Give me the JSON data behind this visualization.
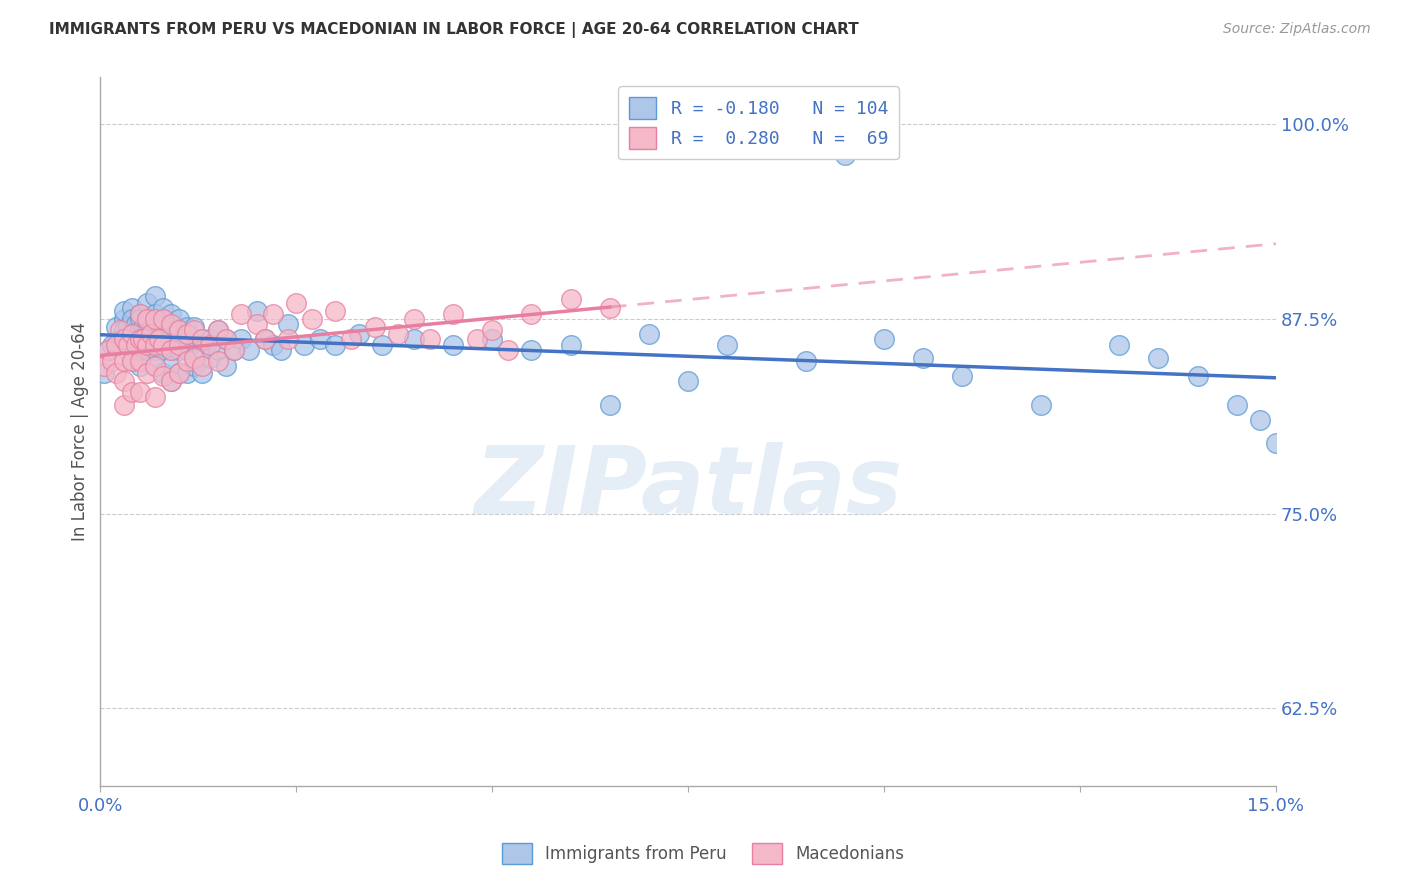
{
  "title": "IMMIGRANTS FROM PERU VS MACEDONIAN IN LABOR FORCE | AGE 20-64 CORRELATION CHART",
  "source": "Source: ZipAtlas.com",
  "ylabel": "In Labor Force | Age 20-64",
  "xlim": [
    0.0,
    0.15
  ],
  "ylim": [
    0.575,
    1.03
  ],
  "ytick_labels_right": [
    "100.0%",
    "87.5%",
    "75.0%",
    "62.5%"
  ],
  "ytick_vals_right": [
    1.0,
    0.875,
    0.75,
    0.625
  ],
  "peru_color": "#aec6e8",
  "peru_edge_color": "#5b9bd5",
  "mac_color": "#f4b8c8",
  "mac_edge_color": "#e87fa0",
  "trend_peru_color": "#4472c4",
  "trend_mac_color": "#e87fa0",
  "R_peru": -0.18,
  "N_peru": 104,
  "R_mac": 0.28,
  "N_mac": 69,
  "watermark": "ZIPatlas",
  "background_color": "#ffffff",
  "grid_color": "#cccccc",
  "legend_label_peru": "R = -0.180   N = 104",
  "legend_label_mac": "R =  0.280   N =  69",
  "bottom_legend_peru": "Immigrants from Peru",
  "bottom_legend_mac": "Macedonians",
  "peru_x": [
    0.0005,
    0.001,
    0.0015,
    0.002,
    0.002,
    0.0025,
    0.003,
    0.003,
    0.003,
    0.003,
    0.0035,
    0.004,
    0.004,
    0.004,
    0.004,
    0.004,
    0.0045,
    0.005,
    0.005,
    0.005,
    0.005,
    0.005,
    0.005,
    0.0055,
    0.006,
    0.006,
    0.006,
    0.006,
    0.006,
    0.0065,
    0.007,
    0.007,
    0.007,
    0.007,
    0.007,
    0.007,
    0.0075,
    0.008,
    0.008,
    0.008,
    0.008,
    0.008,
    0.008,
    0.009,
    0.009,
    0.009,
    0.009,
    0.009,
    0.009,
    0.01,
    0.01,
    0.01,
    0.01,
    0.01,
    0.011,
    0.011,
    0.011,
    0.011,
    0.012,
    0.012,
    0.012,
    0.013,
    0.013,
    0.013,
    0.014,
    0.014,
    0.015,
    0.015,
    0.016,
    0.016,
    0.017,
    0.018,
    0.019,
    0.02,
    0.021,
    0.022,
    0.023,
    0.024,
    0.026,
    0.028,
    0.03,
    0.033,
    0.036,
    0.04,
    0.045,
    0.05,
    0.055,
    0.06,
    0.065,
    0.07,
    0.075,
    0.08,
    0.09,
    0.095,
    0.1,
    0.105,
    0.11,
    0.12,
    0.13,
    0.135,
    0.14,
    0.145,
    0.148,
    0.15
  ],
  "peru_y": [
    0.84,
    0.855,
    0.858,
    0.87,
    0.858,
    0.862,
    0.875,
    0.868,
    0.88,
    0.862,
    0.87,
    0.882,
    0.875,
    0.865,
    0.858,
    0.848,
    0.872,
    0.878,
    0.868,
    0.875,
    0.862,
    0.855,
    0.845,
    0.87,
    0.885,
    0.875,
    0.868,
    0.862,
    0.855,
    0.875,
    0.89,
    0.878,
    0.87,
    0.862,
    0.855,
    0.845,
    0.872,
    0.882,
    0.875,
    0.868,
    0.862,
    0.855,
    0.84,
    0.878,
    0.87,
    0.862,
    0.855,
    0.845,
    0.835,
    0.875,
    0.868,
    0.862,
    0.855,
    0.84,
    0.87,
    0.862,
    0.855,
    0.84,
    0.87,
    0.86,
    0.845,
    0.862,
    0.855,
    0.84,
    0.862,
    0.85,
    0.868,
    0.855,
    0.862,
    0.845,
    0.855,
    0.862,
    0.855,
    0.88,
    0.862,
    0.858,
    0.855,
    0.872,
    0.858,
    0.862,
    0.858,
    0.865,
    0.858,
    0.862,
    0.858,
    0.862,
    0.855,
    0.858,
    0.82,
    0.865,
    0.835,
    0.858,
    0.848,
    0.98,
    0.862,
    0.85,
    0.838,
    0.82,
    0.858,
    0.85,
    0.838,
    0.82,
    0.81,
    0.795
  ],
  "mac_x": [
    0.0005,
    0.001,
    0.0015,
    0.002,
    0.002,
    0.0025,
    0.003,
    0.003,
    0.003,
    0.003,
    0.0035,
    0.004,
    0.004,
    0.004,
    0.0045,
    0.005,
    0.005,
    0.005,
    0.005,
    0.0055,
    0.006,
    0.006,
    0.006,
    0.0065,
    0.007,
    0.007,
    0.007,
    0.007,
    0.0075,
    0.008,
    0.008,
    0.008,
    0.009,
    0.009,
    0.009,
    0.01,
    0.01,
    0.01,
    0.011,
    0.011,
    0.012,
    0.012,
    0.013,
    0.013,
    0.014,
    0.015,
    0.015,
    0.016,
    0.017,
    0.018,
    0.02,
    0.021,
    0.022,
    0.024,
    0.025,
    0.027,
    0.03,
    0.032,
    0.035,
    0.038,
    0.04,
    0.042,
    0.045,
    0.048,
    0.05,
    0.052,
    0.055,
    0.06,
    0.065
  ],
  "mac_y": [
    0.845,
    0.855,
    0.848,
    0.858,
    0.84,
    0.868,
    0.862,
    0.848,
    0.835,
    0.82,
    0.858,
    0.865,
    0.848,
    0.828,
    0.858,
    0.878,
    0.862,
    0.848,
    0.828,
    0.862,
    0.875,
    0.858,
    0.84,
    0.865,
    0.875,
    0.858,
    0.845,
    0.825,
    0.862,
    0.875,
    0.858,
    0.838,
    0.872,
    0.855,
    0.835,
    0.868,
    0.858,
    0.84,
    0.865,
    0.848,
    0.868,
    0.85,
    0.862,
    0.845,
    0.858,
    0.868,
    0.848,
    0.862,
    0.855,
    0.878,
    0.872,
    0.862,
    0.878,
    0.862,
    0.885,
    0.875,
    0.88,
    0.862,
    0.87,
    0.865,
    0.875,
    0.862,
    0.878,
    0.862,
    0.868,
    0.855,
    0.878,
    0.888,
    0.882
  ]
}
